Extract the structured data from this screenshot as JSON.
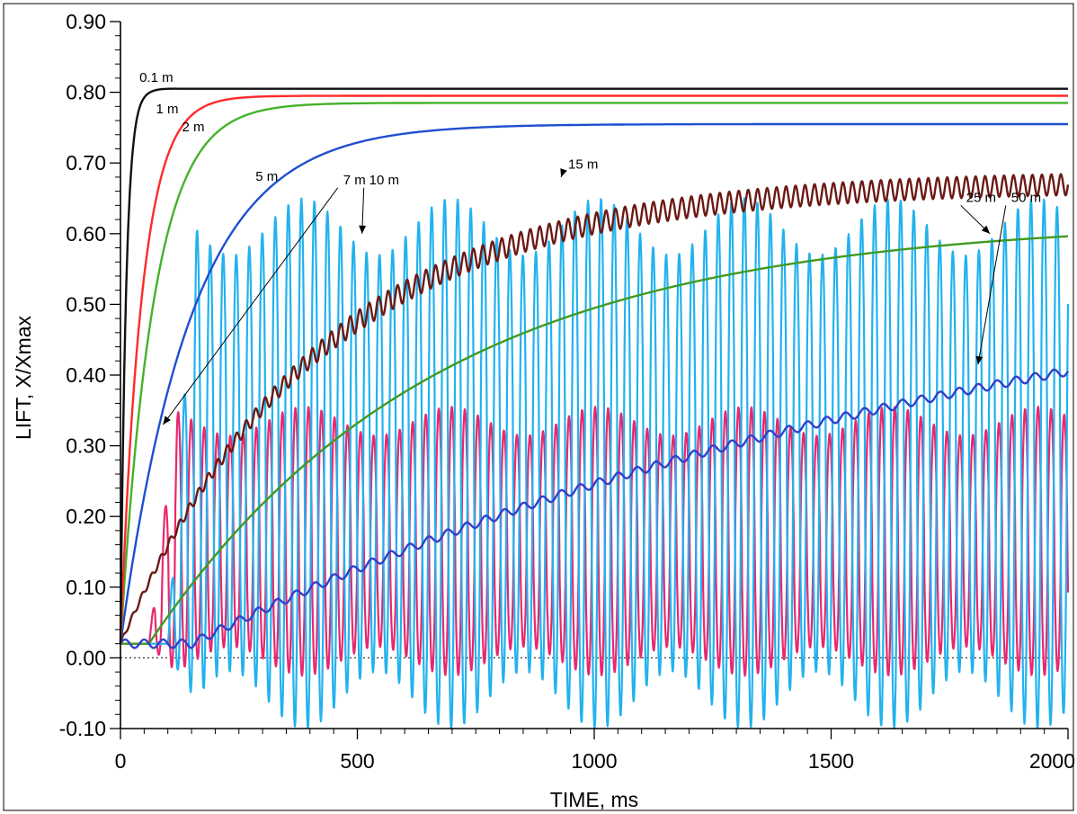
{
  "chart_data": {
    "type": "line",
    "xlabel": "TIME, ms",
    "ylabel": "LIFT, X/Xmax",
    "xlim": [
      0,
      2000
    ],
    "ylim": [
      -0.1,
      0.9
    ],
    "x_ticks": [
      0,
      500,
      1000,
      1500,
      2000
    ],
    "x_tick_labels": [
      "0",
      "500",
      "1000",
      "1500",
      "2000"
    ],
    "y_ticks": [
      -0.1,
      0.0,
      0.1,
      0.2,
      0.3,
      0.4,
      0.5,
      0.6,
      0.7,
      0.8,
      0.9
    ],
    "y_tick_labels": [
      "-0.10",
      "0.00",
      "0.10",
      "0.20",
      "0.30",
      "0.40",
      "0.50",
      "0.60",
      "0.70",
      "0.80",
      "0.90"
    ],
    "zero_reference_line": "dotted",
    "grid": false,
    "series": [
      {
        "name": "0.1 m",
        "color": "#111111",
        "model": "rise",
        "final": 0.805,
        "tau": 12,
        "start": 0.02,
        "overshoot": 0.01
      },
      {
        "name": "1 m",
        "color": "#ff2a2a",
        "model": "rise",
        "final": 0.795,
        "tau": 45,
        "start": 0.02
      },
      {
        "name": "2 m",
        "color": "#44b22a",
        "model": "rise",
        "final": 0.785,
        "tau": 70,
        "start": 0.02
      },
      {
        "name": "5 m",
        "color": "#1f4fd0",
        "model": "rise",
        "final": 0.755,
        "tau": 150,
        "start": 0.02,
        "dashed_from": 140,
        "dashed_to": 340
      },
      {
        "name": "7 m",
        "color": "#e8286e",
        "model": "oscillating",
        "mean": 0.165,
        "amplitude": 0.17,
        "period": 27.5,
        "start_x": 60,
        "end_x": 2000
      },
      {
        "name": "10 m",
        "color": "#22b2ee",
        "model": "oscillating",
        "mean": 0.275,
        "amplitude": 0.335,
        "period": 27.5,
        "start_x": 100,
        "end_x": 2000
      },
      {
        "name": "15 m",
        "color": "#6b1a14",
        "model": "rise_osc",
        "final": 0.675,
        "tau": 420,
        "start": 0.02,
        "amplitude": 0.015,
        "period": 20
      },
      {
        "name": "25 m",
        "color": "#3f9a24",
        "model": "rise",
        "final": 0.62,
        "tau": 600,
        "start": 0.02,
        "delay": 60
      },
      {
        "name": "50 m",
        "color": "#3340c8",
        "model": "rise_steps",
        "final": 0.62,
        "tau": 1800,
        "start": 0.02,
        "delay": 150,
        "ripple": 0.006,
        "period": 40
      }
    ],
    "annotations": [
      {
        "text": "0.1 m",
        "x": 40,
        "y": 0.815
      },
      {
        "text": "1 m",
        "x": 75,
        "y": 0.77
      },
      {
        "text": "2 m",
        "x": 130,
        "y": 0.745
      },
      {
        "text": "5 m",
        "x": 285,
        "y": 0.675
      },
      {
        "text": "7 m",
        "x": 470,
        "y": 0.67,
        "arrow_to": [
          90,
          0.33
        ]
      },
      {
        "text": "10 m",
        "x": 525,
        "y": 0.67,
        "arrow_to": [
          510,
          0.6
        ]
      },
      {
        "text": "15 m",
        "x": 945,
        "y": 0.692,
        "arrow_to": [
          930,
          0.68
        ]
      },
      {
        "text": "25 m",
        "x": 1785,
        "y": 0.645,
        "arrow_to": [
          1835,
          0.6
        ]
      },
      {
        "text": "50 m",
        "x": 1880,
        "y": 0.645,
        "arrow_to": [
          1810,
          0.415
        ]
      }
    ]
  }
}
